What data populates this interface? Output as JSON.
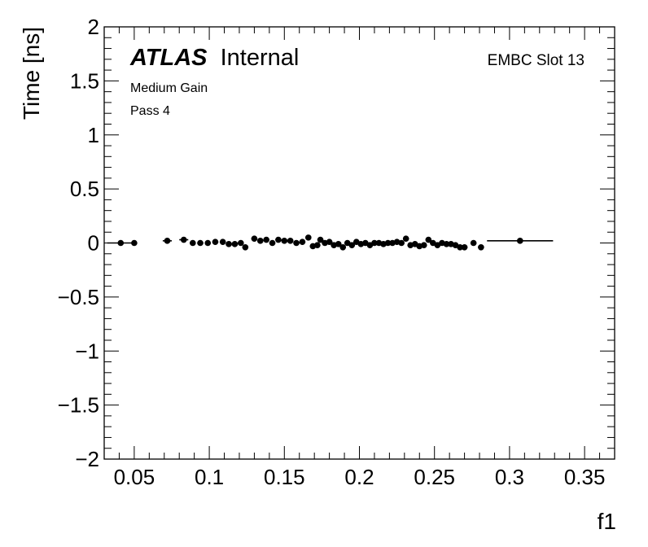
{
  "chart_data": {
    "type": "scatter",
    "xlabel": "f1",
    "ylabel": "Time [ns]",
    "xlim": [
      0.03,
      0.37
    ],
    "ylim": [
      -2,
      2
    ],
    "x_major_ticks": [
      0.05,
      0.1,
      0.15,
      0.2,
      0.25,
      0.3,
      0.35
    ],
    "x_tick_labels": [
      "0.05",
      "0.1",
      "0.15",
      "0.2",
      "0.25",
      "0.3",
      "0.35"
    ],
    "y_major_ticks": [
      -2,
      -1.5,
      -1,
      -0.5,
      0,
      0.5,
      1,
      1.5,
      2
    ],
    "y_tick_labels": [
      "−2",
      "−1.5",
      "−1",
      "−0.5",
      "0",
      "0.5",
      "1",
      "1.5",
      "2"
    ],
    "grid": false,
    "annotations": {
      "experiment": "ATLAS",
      "status": "Internal",
      "gain": "Medium Gain",
      "pass": "Pass 4",
      "detector": "EMBC Slot 13"
    },
    "series": [
      {
        "marker_color": "#000000",
        "points": [
          {
            "x": 0.041,
            "y": 0.0,
            "xerr": 0.009
          },
          {
            "x": 0.05,
            "y": 0.0,
            "xerr": 0.0
          },
          {
            "x": 0.072,
            "y": 0.02,
            "xerr": 0.003
          },
          {
            "x": 0.083,
            "y": 0.03,
            "xerr": 0.003
          },
          {
            "x": 0.089,
            "y": 0.0,
            "xerr": 0.002
          },
          {
            "x": 0.094,
            "y": 0.0,
            "xerr": 0.002
          },
          {
            "x": 0.099,
            "y": 0.0,
            "xerr": 0.002
          },
          {
            "x": 0.104,
            "y": 0.01,
            "xerr": 0.002
          },
          {
            "x": 0.109,
            "y": 0.01,
            "xerr": 0.002
          },
          {
            "x": 0.113,
            "y": -0.01,
            "xerr": 0.002
          },
          {
            "x": 0.117,
            "y": -0.01,
            "xerr": 0.002
          },
          {
            "x": 0.121,
            "y": 0.0,
            "xerr": 0.002
          },
          {
            "x": 0.124,
            "y": -0.04,
            "xerr": 0.002
          },
          {
            "x": 0.13,
            "y": 0.04,
            "xerr": 0.002
          },
          {
            "x": 0.134,
            "y": 0.02,
            "xerr": 0.002
          },
          {
            "x": 0.138,
            "y": 0.03,
            "xerr": 0.002
          },
          {
            "x": 0.142,
            "y": 0.0,
            "xerr": 0.002
          },
          {
            "x": 0.146,
            "y": 0.03,
            "xerr": 0.002
          },
          {
            "x": 0.15,
            "y": 0.02,
            "xerr": 0.002
          },
          {
            "x": 0.154,
            "y": 0.02,
            "xerr": 0.002
          },
          {
            "x": 0.158,
            "y": 0.0,
            "xerr": 0.002
          },
          {
            "x": 0.162,
            "y": 0.01,
            "xerr": 0.002
          },
          {
            "x": 0.166,
            "y": 0.05,
            "xerr": 0.002
          },
          {
            "x": 0.169,
            "y": -0.03,
            "xerr": 0.002
          },
          {
            "x": 0.172,
            "y": -0.02,
            "xerr": 0.002
          },
          {
            "x": 0.174,
            "y": 0.03,
            "xerr": 0.002
          },
          {
            "x": 0.177,
            "y": 0.0,
            "xerr": 0.002
          },
          {
            "x": 0.18,
            "y": 0.01,
            "xerr": 0.002
          },
          {
            "x": 0.183,
            "y": -0.02,
            "xerr": 0.002
          },
          {
            "x": 0.186,
            "y": -0.01,
            "xerr": 0.002
          },
          {
            "x": 0.189,
            "y": -0.04,
            "xerr": 0.002
          },
          {
            "x": 0.192,
            "y": 0.0,
            "xerr": 0.002
          },
          {
            "x": 0.195,
            "y": -0.02,
            "xerr": 0.002
          },
          {
            "x": 0.198,
            "y": 0.01,
            "xerr": 0.002
          },
          {
            "x": 0.201,
            "y": -0.01,
            "xerr": 0.002
          },
          {
            "x": 0.204,
            "y": 0.0,
            "xerr": 0.002
          },
          {
            "x": 0.207,
            "y": -0.02,
            "xerr": 0.002
          },
          {
            "x": 0.21,
            "y": 0.0,
            "xerr": 0.002
          },
          {
            "x": 0.213,
            "y": 0.0,
            "xerr": 0.002
          },
          {
            "x": 0.216,
            "y": -0.01,
            "xerr": 0.002
          },
          {
            "x": 0.219,
            "y": 0.0,
            "xerr": 0.002
          },
          {
            "x": 0.222,
            "y": 0.0,
            "xerr": 0.002
          },
          {
            "x": 0.225,
            "y": 0.01,
            "xerr": 0.002
          },
          {
            "x": 0.228,
            "y": 0.0,
            "xerr": 0.002
          },
          {
            "x": 0.231,
            "y": 0.04,
            "xerr": 0.002
          },
          {
            "x": 0.234,
            "y": -0.02,
            "xerr": 0.002
          },
          {
            "x": 0.237,
            "y": -0.01,
            "xerr": 0.002
          },
          {
            "x": 0.24,
            "y": -0.03,
            "xerr": 0.002
          },
          {
            "x": 0.243,
            "y": -0.02,
            "xerr": 0.002
          },
          {
            "x": 0.246,
            "y": 0.03,
            "xerr": 0.002
          },
          {
            "x": 0.249,
            "y": 0.0,
            "xerr": 0.002
          },
          {
            "x": 0.252,
            "y": -0.02,
            "xerr": 0.002
          },
          {
            "x": 0.255,
            "y": 0.0,
            "xerr": 0.002
          },
          {
            "x": 0.258,
            "y": -0.01,
            "xerr": 0.002
          },
          {
            "x": 0.261,
            "y": -0.01,
            "xerr": 0.002
          },
          {
            "x": 0.264,
            "y": -0.02,
            "xerr": 0.002
          },
          {
            "x": 0.267,
            "y": -0.04,
            "xerr": 0.002
          },
          {
            "x": 0.27,
            "y": -0.04,
            "xerr": 0.002
          },
          {
            "x": 0.276,
            "y": 0.0,
            "xerr": 0.002
          },
          {
            "x": 0.281,
            "y": -0.04,
            "xerr": 0.002
          },
          {
            "x": 0.307,
            "y": 0.02,
            "xerr": 0.022
          }
        ]
      }
    ]
  }
}
